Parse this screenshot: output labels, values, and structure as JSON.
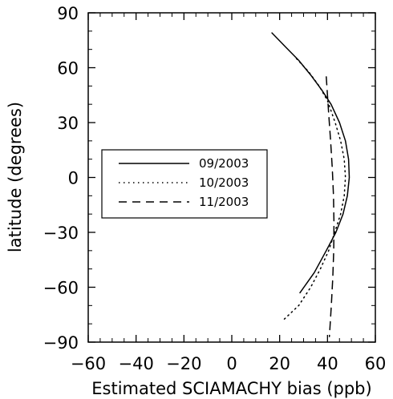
{
  "chart_data": {
    "type": "line",
    "xlabel": "Estimated SCIAMACHY bias (ppb)",
    "ylabel": "latitude (degrees)",
    "xlim": [
      -60,
      60
    ],
    "ylim": [
      -90,
      90
    ],
    "xticks": [
      -60,
      -40,
      -20,
      0,
      20,
      40,
      60
    ],
    "xtick_labels": [
      "−60",
      "−40",
      "−20",
      "0",
      "20",
      "40",
      "60"
    ],
    "yticks": [
      -90,
      -60,
      -30,
      0,
      30,
      60,
      90
    ],
    "ytick_labels": [
      "−90",
      "−60",
      "−30",
      "0",
      "30",
      "60",
      "90"
    ],
    "grid": false,
    "legend_position": "center-left",
    "series": [
      {
        "name": "09/2003",
        "dash": "solid",
        "color": "#000000",
        "x": [
          16.8,
          22,
          28,
          33,
          37.5,
          41.5,
          45,
          47.5,
          48.8,
          49.1,
          48.3,
          46.5,
          43.5,
          39.5,
          34.5,
          28.5
        ],
        "y": [
          79,
          72,
          64,
          56,
          48,
          40,
          30,
          20,
          10,
          0,
          -10,
          -20,
          -30,
          -40,
          -52,
          -63
        ]
      },
      {
        "name": "10/2003",
        "dash": "dotted",
        "color": "#000000",
        "x": [
          27,
          32,
          36.5,
          40,
          43.2,
          45.5,
          47,
          47.5,
          47,
          45.5,
          43,
          40.5,
          37,
          33,
          28,
          21.5
        ],
        "y": [
          65,
          58,
          50,
          42,
          30,
          20,
          10,
          0,
          -10,
          -20,
          -30,
          -40,
          -50,
          -60,
          -70,
          -78
        ]
      },
      {
        "name": "11/2003",
        "dash": "dashed",
        "color": "#000000",
        "x": [
          39.5,
          40,
          40.5,
          41.3,
          42,
          42.5,
          42.7,
          42.6,
          42.2,
          41.6,
          40.8
        ],
        "y": [
          55,
          45,
          35,
          20,
          5,
          -10,
          -25,
          -40,
          -55,
          -70,
          -87
        ]
      }
    ]
  }
}
